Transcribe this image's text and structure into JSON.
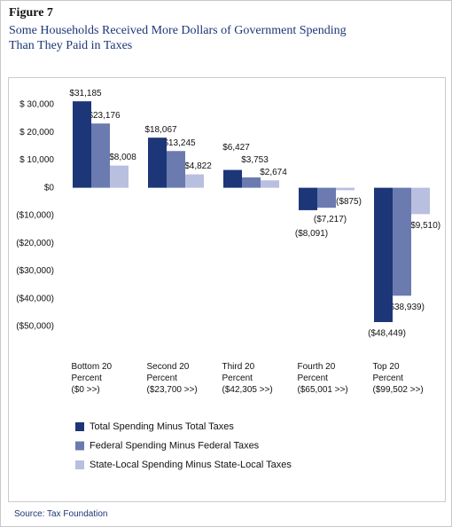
{
  "header": {
    "figure": "Figure 7",
    "subtitle": "Some Households Received More Dollars of Government Spending\nThan They Paid in Taxes"
  },
  "chart_data": {
    "type": "bar",
    "categories": [
      "Bottom 20\nPercent\n($0 >>)",
      "Second 20\nPercent\n($23,700 >>)",
      "Third 20\nPercent\n($42,305 >>)",
      "Fourth 20\nPercent\n($65,001 >>)",
      "Top 20\nPercent\n($99,502 >>)"
    ],
    "series": [
      {
        "name": "Total Spending Minus Total Taxes",
        "color": "#1c3677",
        "values": [
          31185,
          18067,
          6427,
          -8091,
          -48449
        ],
        "value_labels": [
          "$31,185",
          "$18,067",
          "$6,427",
          "($8,091)",
          "($48,449)"
        ]
      },
      {
        "name": "Federal Spending Minus Federal Taxes",
        "color": "#6b7bb0",
        "values": [
          23176,
          13245,
          3753,
          -7217,
          -38939
        ],
        "value_labels": [
          "$23,176",
          "$13,245",
          "$3,753",
          "($7,217)",
          "($38,939)"
        ]
      },
      {
        "name": "State-Local Spending Minus State-Local Taxes",
        "color": "#b8bfdf",
        "values": [
          8008,
          4822,
          2674,
          -875,
          -9510
        ],
        "value_labels": [
          "$8,008",
          "$4,822",
          "$2,674",
          "($875)",
          "($9,510)"
        ]
      }
    ],
    "ylim": [
      -59000,
      37000
    ],
    "yticks": [
      {
        "value": 30000,
        "label": "$ 30,000"
      },
      {
        "value": 20000,
        "label": "$ 20,000"
      },
      {
        "value": 10000,
        "label": "$ 10,000"
      },
      {
        "value": 0,
        "label": "$0"
      },
      {
        "value": -10000,
        "label": "($10,000)"
      },
      {
        "value": -20000,
        "label": "($20,000)"
      },
      {
        "value": -30000,
        "label": "($30,000)"
      },
      {
        "value": -40000,
        "label": "($40,000)"
      },
      {
        "value": -50000,
        "label": "($50,000)"
      }
    ],
    "grid": false
  },
  "footer": {
    "source": "Source: Tax Foundation"
  }
}
